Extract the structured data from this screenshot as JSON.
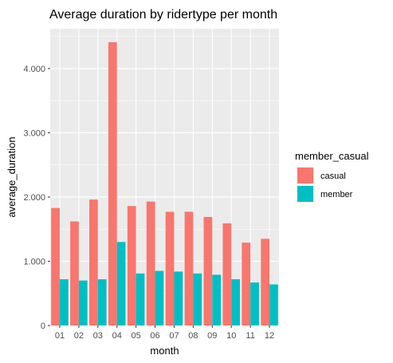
{
  "chart_data": {
    "type": "bar",
    "title": "Average duration by ridertype per month",
    "xlabel": "month",
    "ylabel": "average_duration",
    "categories": [
      "01",
      "02",
      "03",
      "04",
      "05",
      "06",
      "07",
      "08",
      "09",
      "10",
      "11",
      "12"
    ],
    "series": [
      {
        "name": "casual",
        "color": "#F8766D",
        "values": [
          1830,
          1620,
          1960,
          4410,
          1860,
          1930,
          1770,
          1770,
          1690,
          1590,
          1290,
          1350
        ]
      },
      {
        "name": "member",
        "color": "#00BFC4",
        "values": [
          720,
          700,
          720,
          1300,
          810,
          850,
          840,
          810,
          790,
          720,
          670,
          640
        ]
      }
    ],
    "ylim": [
      0,
      4620
    ],
    "y_ticks": [
      0,
      1000,
      2000,
      3000,
      4000
    ],
    "y_tick_labels": [
      "0",
      "1.000",
      "2.000",
      "3.000",
      "4.000"
    ],
    "legend": {
      "title": "member_casual",
      "position": "right"
    },
    "grid": true,
    "panel_background": "#EBEBEB",
    "grid_color": "#FFFFFF"
  }
}
